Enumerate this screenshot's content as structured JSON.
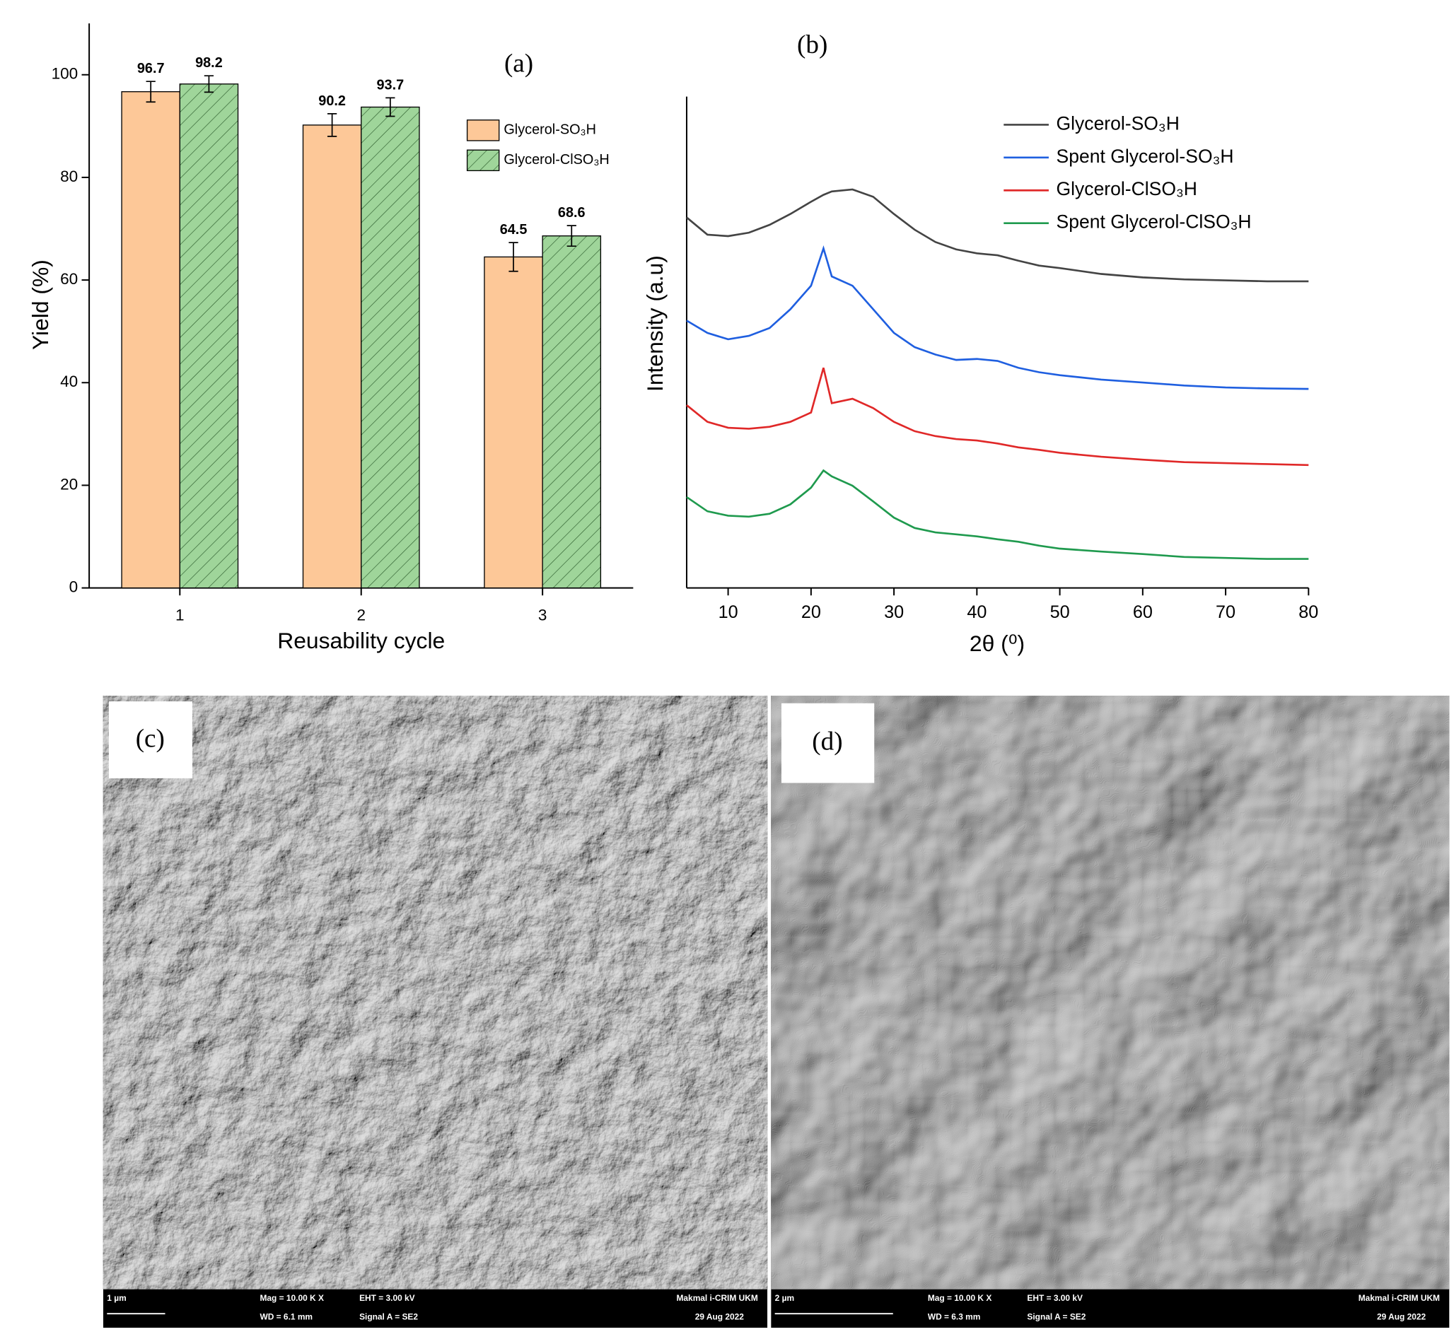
{
  "chart_data": [
    {
      "type": "bar",
      "label": "(a)",
      "ylabel": "Yield (%)",
      "xlabel": "Reusability cycle",
      "categories": [
        "1",
        "2",
        "3"
      ],
      "series": [
        {
          "name": "Glycerol-SO₃H",
          "color": "#fdc898",
          "values": [
            96.7,
            90.2,
            64.5
          ],
          "errors": [
            2.0,
            2.2,
            2.8
          ]
        },
        {
          "name": "Glycerol-ClSO₃H",
          "color": "#9fd59a",
          "hatch": true,
          "values": [
            98.2,
            93.7,
            68.6
          ],
          "errors": [
            1.6,
            1.8,
            2.0
          ]
        }
      ],
      "ylim": [
        0,
        110
      ],
      "yticks": [
        0,
        20,
        40,
        60,
        80,
        100
      ]
    },
    {
      "type": "line",
      "label": "(b)",
      "ylabel": "Intensity (a.u)",
      "xlabel": "2θ (⁰)",
      "x": [
        5,
        7.5,
        10,
        12.5,
        15,
        17.5,
        20,
        21.5,
        22.5,
        25,
        27.5,
        30,
        32.5,
        35,
        37.5,
        40,
        42.5,
        45,
        47.5,
        50,
        55,
        60,
        65,
        70,
        75,
        80
      ],
      "series": [
        {
          "name": "Glycerol-SO₃H",
          "color": "#444444",
          "values": [
            75.4,
            71.9,
            71.6,
            72.3,
            73.9,
            76.1,
            78.6,
            80.0,
            80.7,
            81.1,
            79.6,
            76.1,
            72.9,
            70.4,
            68.9,
            68.1,
            67.7,
            66.6,
            65.6,
            65.1,
            63.9,
            63.2,
            62.8,
            62.6,
            62.4,
            62.4
          ]
        },
        {
          "name": "Spent Glycerol-SO₃H",
          "color": "#1f5fe0",
          "values": [
            54.4,
            51.9,
            50.6,
            51.3,
            52.9,
            56.7,
            61.5,
            69.1,
            63.4,
            61.5,
            56.7,
            51.9,
            49.0,
            47.5,
            46.4,
            46.6,
            46.2,
            44.8,
            43.9,
            43.3,
            42.4,
            41.8,
            41.2,
            40.8,
            40.6,
            40.5
          ]
        },
        {
          "name": "Glycerol-ClSO₃H",
          "color": "#e02828",
          "values": [
            37.2,
            33.8,
            32.6,
            32.4,
            32.8,
            33.8,
            35.7,
            44.8,
            37.6,
            38.5,
            36.6,
            33.8,
            31.9,
            30.9,
            30.3,
            30.0,
            29.4,
            28.6,
            28.1,
            27.5,
            26.7,
            26.1,
            25.6,
            25.4,
            25.2,
            25.0
          ]
        },
        {
          "name": "Spent Glycerol-ClSO₃H",
          "color": "#1f9a4e",
          "values": [
            18.5,
            15.6,
            14.7,
            14.5,
            15.1,
            17.0,
            20.4,
            23.9,
            22.7,
            20.8,
            17.6,
            14.3,
            12.2,
            11.3,
            10.9,
            10.5,
            9.9,
            9.4,
            8.6,
            8.0,
            7.4,
            6.9,
            6.3,
            6.1,
            5.9,
            5.9
          ]
        }
      ],
      "xlim": [
        5,
        80
      ],
      "xticks": [
        10,
        20,
        30,
        40,
        50,
        60,
        70,
        80
      ],
      "ylim": [
        0,
        100
      ]
    }
  ],
  "images": [
    {
      "label": "(c)",
      "scale": "1 µm",
      "mag": "Mag =   10.00 K X",
      "wd": "WD =  6.1 mm",
      "eht": "EHT =  3.00 kV",
      "signal": "Signal A = SE2",
      "lab": "Makmal i-CRIM UKM",
      "date": "29 Aug 2022"
    },
    {
      "label": "(d)",
      "scale": "2 µm",
      "mag": "Mag =   10.00 K X",
      "wd": "WD =  6.3 mm",
      "eht": "EHT =  3.00 kV",
      "signal": "Signal A = SE2",
      "lab": "Makmal i-CRIM UKM",
      "date": "29 Aug 2022"
    }
  ]
}
